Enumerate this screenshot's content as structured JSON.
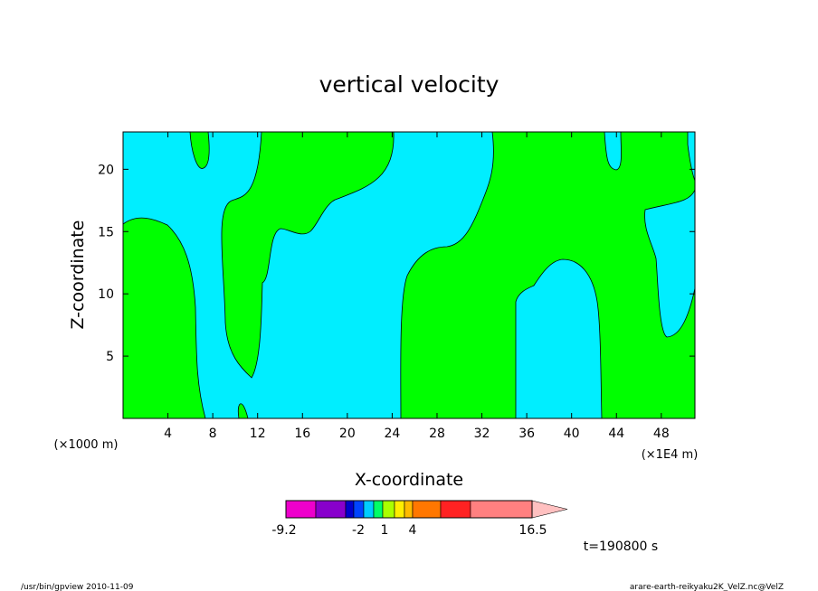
{
  "chart_data": {
    "type": "filled-contour",
    "title": "vertical velocity",
    "xlabel": "X-coordinate",
    "ylabel": "Z-coordinate",
    "x_unit_left": "(×1000 m)",
    "x_unit_right": "(×1E4 m)",
    "xlim": [
      0,
      51
    ],
    "ylim": [
      0,
      23
    ],
    "x_ticks": [
      4,
      8,
      12,
      16,
      20,
      24,
      28,
      32,
      36,
      40,
      44,
      48
    ],
    "x_tick_labels": [
      "4",
      "8",
      "12",
      "16",
      "20",
      "24",
      "28",
      "32",
      "36",
      "40",
      "44",
      "48"
    ],
    "y_ticks": [
      5,
      10,
      15,
      20
    ],
    "y_tick_labels": [
      "5",
      "10",
      "15",
      "20"
    ],
    "fill_colors": {
      "positive_region": "#00ff00",
      "negative_region": "#00eeff"
    },
    "colorbar": {
      "min": "-9.2",
      "max": "16.5",
      "labels": [
        "-9.2",
        "-2",
        "1",
        "4",
        "16.5"
      ],
      "colors": [
        "#ee00cc",
        "#8800cc",
        "#0000cc",
        "#0044ff",
        "#00ccff",
        "#00ff66",
        "#aaff00",
        "#ffee00",
        "#ffbb00",
        "#ff7700",
        "#ff2222",
        "#ff8080",
        "#ffc0c0"
      ]
    },
    "time_label": "t=190800 s"
  },
  "footer": {
    "left": "/usr/bin/gpview  2010-11-09",
    "right": "arare-earth-reikyaku2K_VelZ.nc@VelZ"
  }
}
